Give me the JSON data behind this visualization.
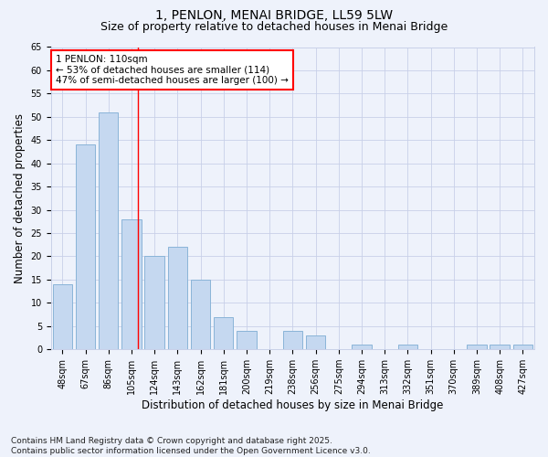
{
  "title": "1, PENLON, MENAI BRIDGE, LL59 5LW",
  "subtitle": "Size of property relative to detached houses in Menai Bridge",
  "xlabel": "Distribution of detached houses by size in Menai Bridge",
  "ylabel": "Number of detached properties",
  "categories": [
    "48sqm",
    "67sqm",
    "86sqm",
    "105sqm",
    "124sqm",
    "143sqm",
    "162sqm",
    "181sqm",
    "200sqm",
    "219sqm",
    "238sqm",
    "256sqm",
    "275sqm",
    "294sqm",
    "313sqm",
    "332sqm",
    "351sqm",
    "370sqm",
    "389sqm",
    "408sqm",
    "427sqm"
  ],
  "values": [
    14,
    44,
    51,
    28,
    20,
    22,
    15,
    7,
    4,
    0,
    4,
    3,
    0,
    1,
    0,
    1,
    0,
    0,
    1,
    1,
    1
  ],
  "bar_color": "#c5d8f0",
  "bar_edge_color": "#8ab4d8",
  "vline_x_index": 3.26,
  "vline_color": "red",
  "annotation_text": "1 PENLON: 110sqm\n← 53% of detached houses are smaller (114)\n47% of semi-detached houses are larger (100) →",
  "annotation_box_color": "white",
  "annotation_box_edge": "red",
  "ylim": [
    0,
    65
  ],
  "yticks": [
    0,
    5,
    10,
    15,
    20,
    25,
    30,
    35,
    40,
    45,
    50,
    55,
    60,
    65
  ],
  "footer": "Contains HM Land Registry data © Crown copyright and database right 2025.\nContains public sector information licensed under the Open Government Licence v3.0.",
  "bg_color": "#eef2fb",
  "grid_color": "#c8d0e8",
  "title_fontsize": 10,
  "subtitle_fontsize": 9,
  "tick_fontsize": 7,
  "label_fontsize": 8.5,
  "footer_fontsize": 6.5,
  "annotation_fontsize": 7.5
}
